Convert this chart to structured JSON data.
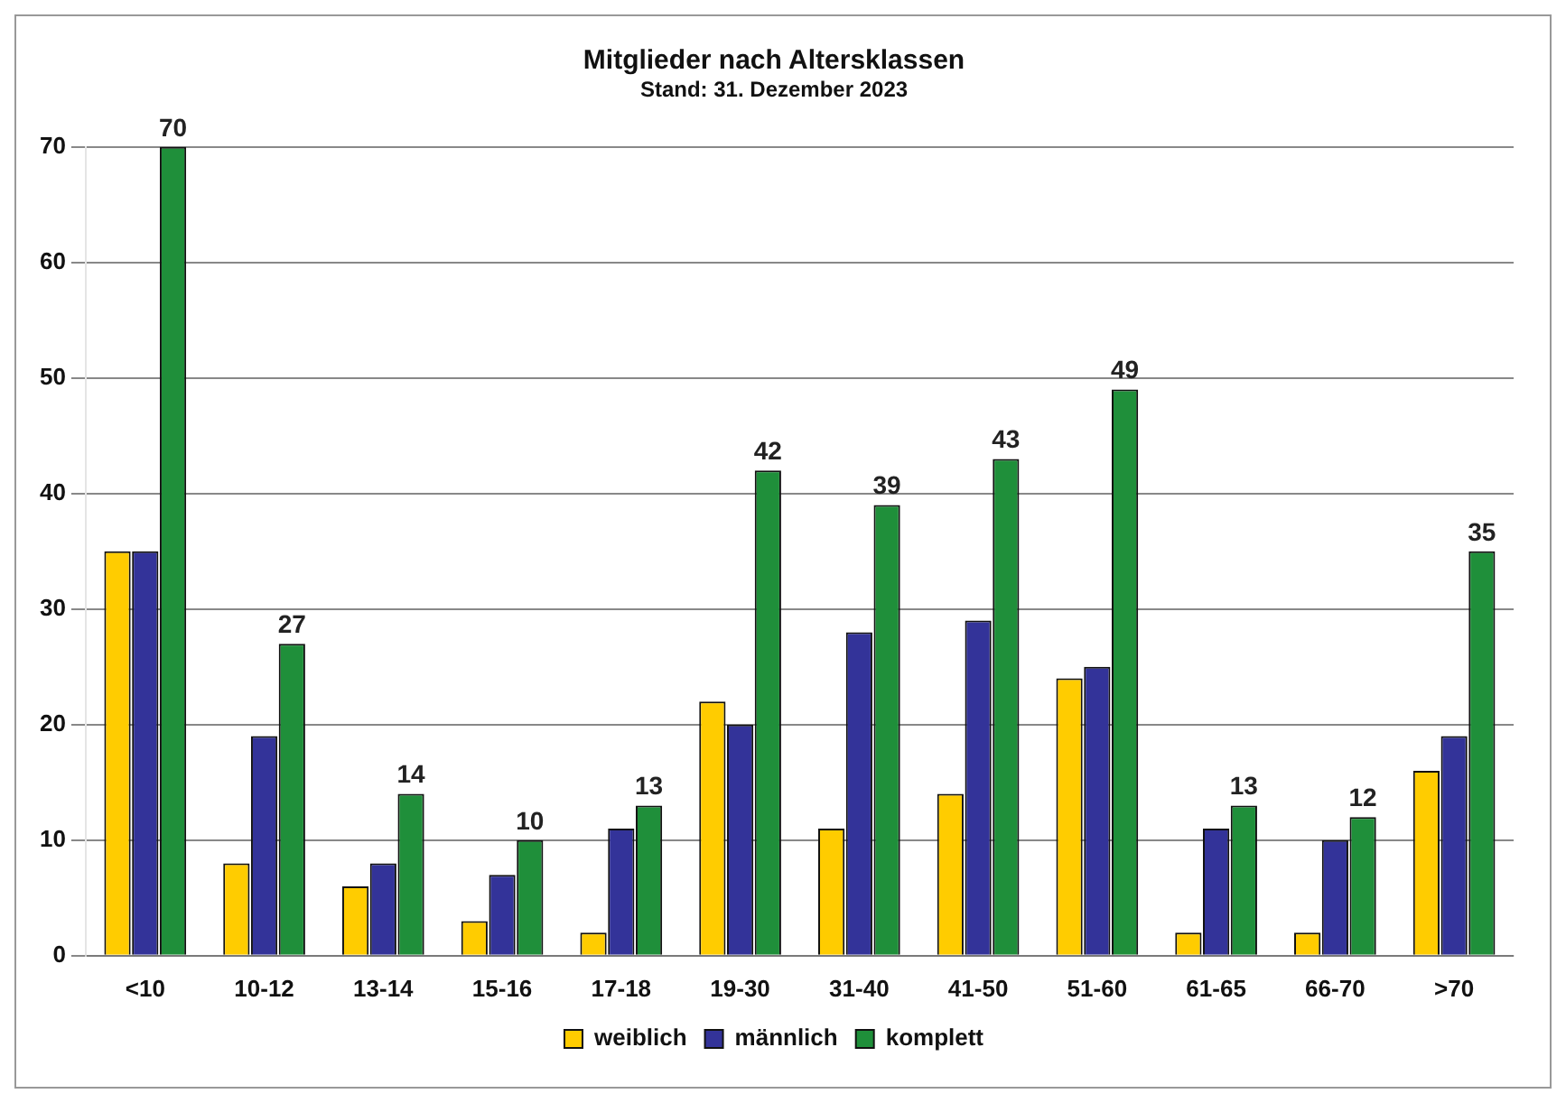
{
  "chart_data": {
    "type": "bar",
    "title": "Mitglieder nach Altersklassen",
    "subtitle": "Stand: 31. Dezember 2023",
    "categories": [
      "<10",
      "10-12",
      "13-14",
      "15-16",
      "17-18",
      "19-30",
      "31-40",
      "41-50",
      "51-60",
      "61-65",
      "66-70",
      ">70"
    ],
    "series": [
      {
        "name": "weiblich",
        "color": "#ffcc00",
        "values": [
          35,
          8,
          6,
          3,
          2,
          22,
          11,
          14,
          24,
          2,
          2,
          16
        ]
      },
      {
        "name": "männlich",
        "color": "#333399",
        "values": [
          35,
          19,
          8,
          7,
          11,
          20,
          28,
          29,
          25,
          11,
          10,
          19
        ]
      },
      {
        "name": "komplett",
        "color": "#1f8f3a",
        "values": [
          70,
          27,
          14,
          10,
          13,
          42,
          39,
          43,
          49,
          13,
          12,
          35
        ],
        "value_labels": [
          "70",
          "27",
          "14",
          "10",
          "13",
          "42",
          "39",
          "43",
          "49",
          "13",
          "12",
          "35"
        ]
      }
    ],
    "ylim": [
      0,
      70
    ],
    "yticks": [
      0,
      10,
      20,
      30,
      40,
      50,
      60,
      70
    ],
    "grid": "y",
    "legend": "bottom"
  }
}
